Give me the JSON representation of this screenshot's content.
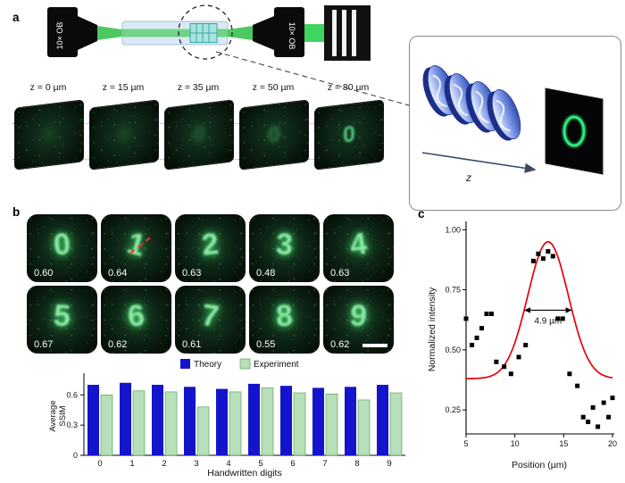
{
  "figure": {
    "panel_a_label": "a",
    "panel_b_label": "b",
    "panel_c_label": "c"
  },
  "setup": {
    "objective_left": "10× OB",
    "objective_right": "10× OB",
    "z_labels": [
      "z = 0 µm",
      "z = 15 µm",
      "z = 35 µm",
      "z = 50 µm",
      "z = 80 µm"
    ],
    "z_plane_digit": "0",
    "inset": {
      "z_axis_label": "z",
      "screen_digit": "0"
    }
  },
  "b": {
    "images": [
      {
        "digit": "0",
        "ssim": "0.60"
      },
      {
        "digit": "1",
        "ssim": "0.64"
      },
      {
        "digit": "2",
        "ssim": "0.63"
      },
      {
        "digit": "3",
        "ssim": "0.48"
      },
      {
        "digit": "4",
        "ssim": "0.63"
      },
      {
        "digit": "5",
        "ssim": "0.67"
      },
      {
        "digit": "6",
        "ssim": "0.62"
      },
      {
        "digit": "7",
        "ssim": "0.61"
      },
      {
        "digit": "8",
        "ssim": "0.55"
      },
      {
        "digit": "9",
        "ssim": "0.62"
      }
    ]
  },
  "chart_data": [
    {
      "type": "bar",
      "categories": [
        "0",
        "1",
        "2",
        "3",
        "4",
        "5",
        "6",
        "7",
        "8",
        "9"
      ],
      "series": [
        {
          "name": "Theory",
          "color": "#1414cc",
          "values": [
            0.7,
            0.72,
            0.7,
            0.68,
            0.66,
            0.71,
            0.69,
            0.67,
            0.68,
            0.7
          ]
        },
        {
          "name": "Experiment",
          "color": "#b7dfb9",
          "values": [
            0.6,
            0.64,
            0.63,
            0.48,
            0.63,
            0.67,
            0.62,
            0.61,
            0.55,
            0.62
          ]
        }
      ],
      "xlabel": "Handwritten digits",
      "ylabel": "Average SSIM",
      "ylabel_lines": [
        "Average",
        "SSIM"
      ],
      "yticks": [
        "0",
        "0.3",
        "0.6"
      ],
      "ytick_values": [
        0,
        0.3,
        0.6
      ],
      "ylim": [
        0,
        0.78
      ],
      "legend_position": "top"
    },
    {
      "type": "scatter",
      "xlabel": "Position (µm)",
      "ylabel": "Normalized intensity",
      "xticks": [
        "5",
        "10",
        "15",
        "20"
      ],
      "xtick_values": [
        5,
        10,
        15,
        20
      ],
      "yticks": [
        "0.25",
        "0.50",
        "0.75",
        "1.00"
      ],
      "ytick_values": [
        0.25,
        0.5,
        0.75,
        1.0
      ],
      "xlim": [
        5,
        20
      ],
      "ylim": [
        0.15,
        1.02
      ],
      "point_color": "#000000",
      "points": [
        [
          5.0,
          0.63
        ],
        [
          5.6,
          0.52
        ],
        [
          6.1,
          0.55
        ],
        [
          6.6,
          0.59
        ],
        [
          7.1,
          0.65
        ],
        [
          7.6,
          0.65
        ],
        [
          8.1,
          0.45
        ],
        [
          8.9,
          0.43
        ],
        [
          9.6,
          0.4
        ],
        [
          10.4,
          0.47
        ],
        [
          11.1,
          0.52
        ],
        [
          11.9,
          0.87
        ],
        [
          12.4,
          0.9
        ],
        [
          12.9,
          0.88
        ],
        [
          13.4,
          0.91
        ],
        [
          13.9,
          0.89
        ],
        [
          14.4,
          0.63
        ],
        [
          14.9,
          0.63
        ],
        [
          15.6,
          0.4
        ],
        [
          16.4,
          0.35
        ],
        [
          17.0,
          0.22
        ],
        [
          17.5,
          0.2
        ],
        [
          18.0,
          0.26
        ],
        [
          18.5,
          0.18
        ],
        [
          19.1,
          0.28
        ],
        [
          19.6,
          0.22
        ],
        [
          20.0,
          0.3
        ]
      ],
      "fit": {
        "type": "gaussian",
        "baseline": 0.38,
        "amplitude": 0.57,
        "center": 13.4,
        "fwhm_um": 4.9,
        "color": "#e8000b"
      },
      "annotation": "4.9 µm"
    }
  ]
}
